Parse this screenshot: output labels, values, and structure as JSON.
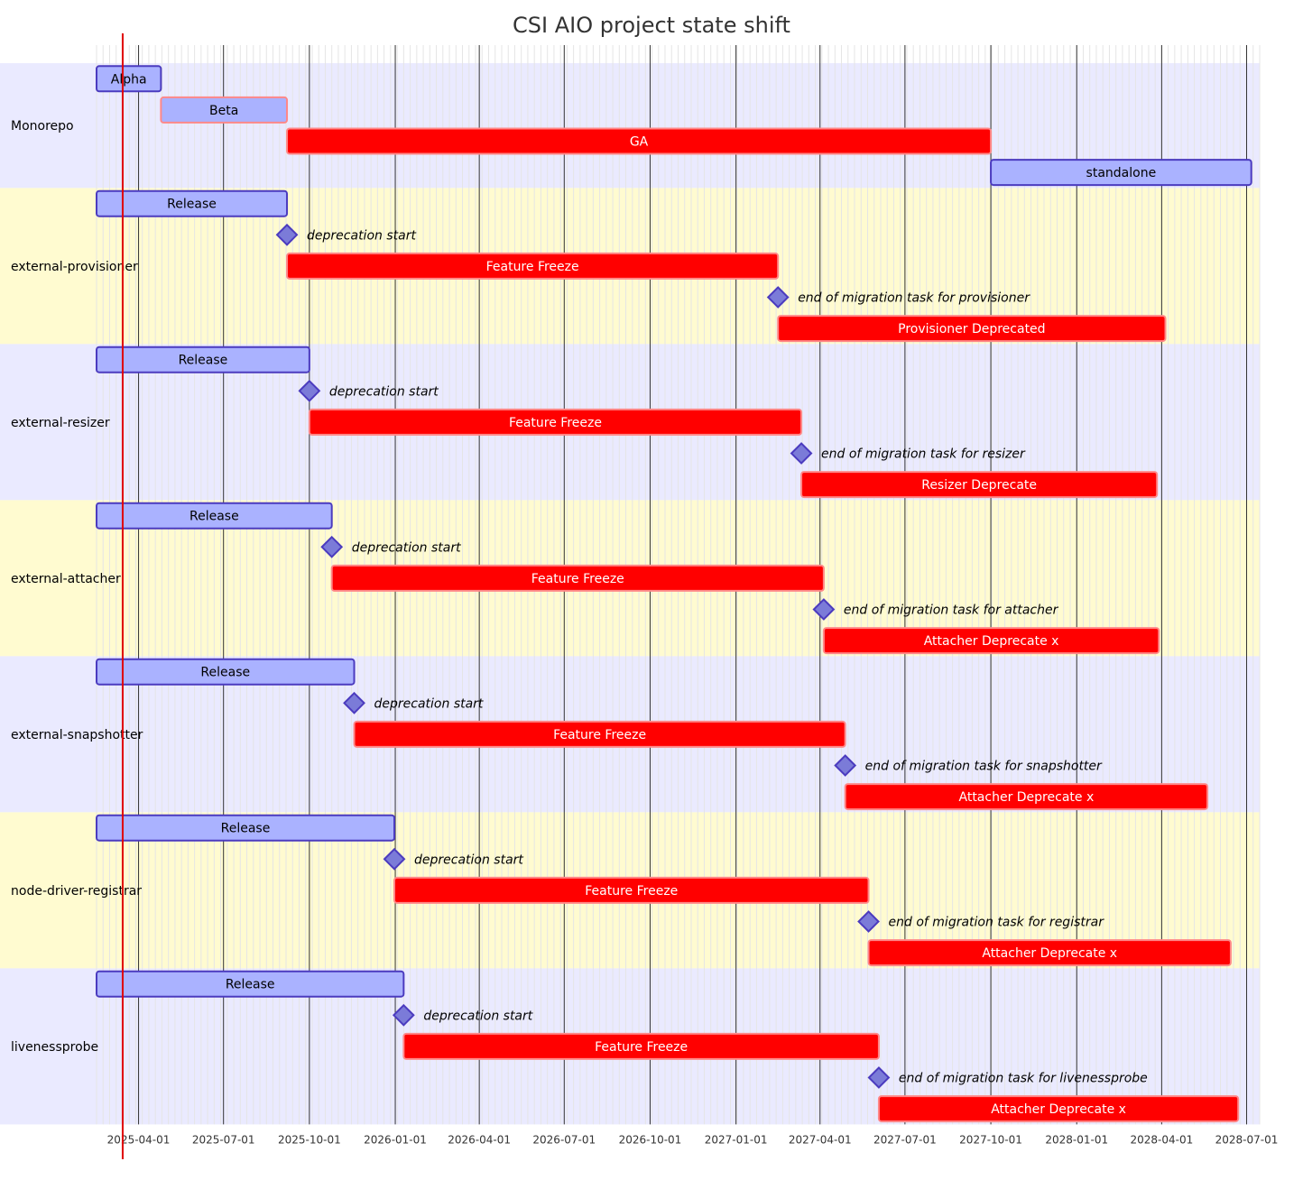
{
  "chart_data": {
    "type": "gantt",
    "title": "CSI AIO project state shift",
    "today": "2025-03-15",
    "x_range": [
      "2025-02-15",
      "2028-07-15"
    ],
    "x_ticks": [
      "2025-04-01",
      "2025-07-01",
      "2025-10-01",
      "2026-01-01",
      "2026-04-01",
      "2026-07-01",
      "2026-10-01",
      "2027-01-01",
      "2027-04-01",
      "2027-07-01",
      "2027-10-01",
      "2028-01-01",
      "2028-04-01",
      "2028-07-01"
    ],
    "colors": {
      "section_even": "#eaeaff",
      "section_odd": "#fffbd0",
      "task_fill": "#aab2ff",
      "task_stroke": "#4b3bbf",
      "crit_fill": "#ff0000",
      "crit_stroke": "#ff8888",
      "milestone_fill": "#7b7bd8",
      "milestone_stroke": "#4b3bbf",
      "today_line": "#e00000",
      "grid_major": "#333333",
      "grid_minor": "#e5e5e5"
    },
    "sections": [
      {
        "name": "Monorepo",
        "tasks": [
          {
            "label": "Alpha",
            "start": "2025-02-15",
            "end": "2025-04-25",
            "kind": "task"
          },
          {
            "label": "Beta",
            "start": "2025-04-25",
            "end": "2025-09-07",
            "kind": "beta"
          },
          {
            "label": "GA",
            "start": "2025-09-07",
            "end": "2027-10-01",
            "kind": "crit"
          },
          {
            "label": "standalone",
            "start": "2027-10-01",
            "end": "2028-07-06",
            "kind": "task"
          }
        ]
      },
      {
        "name": "external-provisioner",
        "tasks": [
          {
            "label": "Release",
            "start": "2025-02-15",
            "end": "2025-09-07",
            "kind": "task"
          },
          {
            "label": "deprecation start",
            "start": "2025-09-07",
            "kind": "milestone"
          },
          {
            "label": "Feature Freeze",
            "start": "2025-09-07",
            "end": "2027-02-15",
            "kind": "crit"
          },
          {
            "label": "end of migration task for provisioner",
            "start": "2027-02-15",
            "kind": "milestone"
          },
          {
            "label": "Provisioner Deprecated",
            "start": "2027-02-15",
            "end": "2028-04-05",
            "kind": "crit"
          }
        ]
      },
      {
        "name": "external-resizer",
        "tasks": [
          {
            "label": "Release",
            "start": "2025-02-15",
            "end": "2025-10-01",
            "kind": "task"
          },
          {
            "label": "deprecation start",
            "start": "2025-10-01",
            "kind": "milestone"
          },
          {
            "label": "Feature Freeze",
            "start": "2025-10-01",
            "end": "2027-03-12",
            "kind": "crit"
          },
          {
            "label": "end of migration task for resizer",
            "start": "2027-03-12",
            "kind": "milestone"
          },
          {
            "label": "Resizer Deprecate",
            "start": "2027-03-12",
            "end": "2028-03-27",
            "kind": "crit"
          }
        ]
      },
      {
        "name": "external-attacher",
        "tasks": [
          {
            "label": "Release",
            "start": "2025-02-15",
            "end": "2025-10-25",
            "kind": "task"
          },
          {
            "label": "deprecation start",
            "start": "2025-10-25",
            "kind": "milestone"
          },
          {
            "label": "Feature Freeze",
            "start": "2025-10-25",
            "end": "2027-04-05",
            "kind": "crit"
          },
          {
            "label": "end of migration task for attacher",
            "start": "2027-04-05",
            "kind": "milestone"
          },
          {
            "label": "Attacher Deprecate x",
            "start": "2027-04-05",
            "end": "2028-03-29",
            "kind": "crit"
          }
        ]
      },
      {
        "name": "external-snapshotter",
        "tasks": [
          {
            "label": "Release",
            "start": "2025-02-15",
            "end": "2025-11-18",
            "kind": "task"
          },
          {
            "label": "deprecation start",
            "start": "2025-11-18",
            "kind": "milestone"
          },
          {
            "label": "Feature Freeze",
            "start": "2025-11-18",
            "end": "2027-04-28",
            "kind": "crit"
          },
          {
            "label": "end of migration task for snapshotter",
            "start": "2027-04-28",
            "kind": "milestone"
          },
          {
            "label": "Attacher Deprecate x",
            "start": "2027-04-28",
            "end": "2028-05-20",
            "kind": "crit"
          }
        ]
      },
      {
        "name": "node-driver-registrar",
        "tasks": [
          {
            "label": "Release",
            "start": "2025-02-15",
            "end": "2025-12-31",
            "kind": "task"
          },
          {
            "label": "deprecation start",
            "start": "2025-12-31",
            "kind": "milestone"
          },
          {
            "label": "Feature Freeze",
            "start": "2025-12-31",
            "end": "2027-05-23",
            "kind": "crit"
          },
          {
            "label": "end of migration task for registrar",
            "start": "2027-05-23",
            "kind": "milestone"
          },
          {
            "label": "Attacher Deprecate x",
            "start": "2027-05-23",
            "end": "2028-06-14",
            "kind": "crit"
          }
        ]
      },
      {
        "name": "livenessprobe",
        "tasks": [
          {
            "label": "Release",
            "start": "2025-02-15",
            "end": "2026-01-10",
            "kind": "task"
          },
          {
            "label": "deprecation start",
            "start": "2026-01-10",
            "kind": "milestone"
          },
          {
            "label": "Feature Freeze",
            "start": "2026-01-10",
            "end": "2027-06-03",
            "kind": "crit"
          },
          {
            "label": "end of migration task for livenessprobe",
            "start": "2027-06-03",
            "kind": "milestone"
          },
          {
            "label": "Attacher Deprecate x",
            "start": "2027-06-03",
            "end": "2028-06-22",
            "kind": "crit"
          }
        ]
      }
    ]
  }
}
